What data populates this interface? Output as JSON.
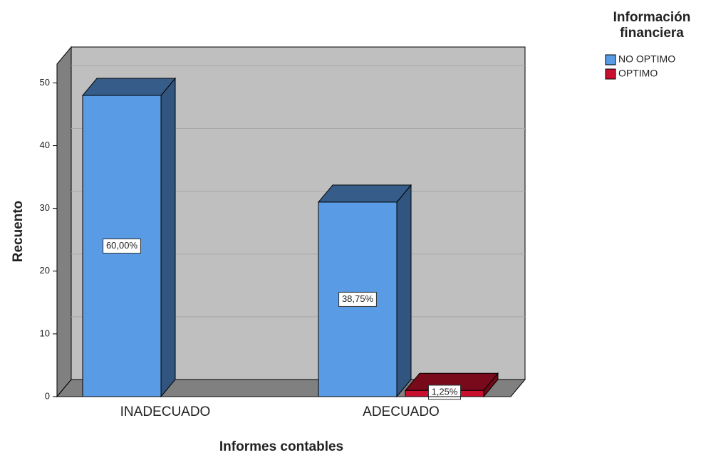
{
  "chart_data": {
    "type": "bar3d",
    "x_label": "Informes contables",
    "y_label": "Recuento",
    "legend_title": "Información financiera",
    "categories": [
      "INADECUADO",
      "ADECUADO"
    ],
    "series": [
      {
        "name": "NO OPTIMO",
        "color": "#5a9be6",
        "values": [
          48,
          31
        ],
        "data_labels": [
          "60,00%",
          "38,75%"
        ]
      },
      {
        "name": "OPTIMO",
        "color": "#c8102e",
        "values": [
          null,
          1
        ],
        "data_labels": [
          null,
          "1,25%"
        ]
      }
    ],
    "ylim": [
      0,
      53
    ],
    "yticks": [
      0,
      10,
      20,
      30,
      40,
      50
    ],
    "grid": true,
    "legend": "top-right"
  }
}
